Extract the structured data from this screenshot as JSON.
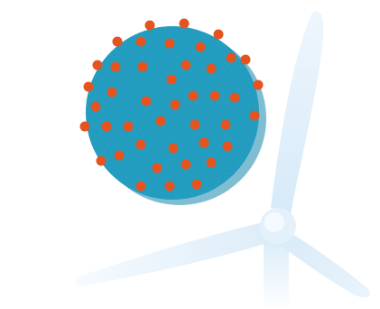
{
  "illustration": {
    "colors": {
      "background": "#ffffff",
      "sphere": "#1a92b8",
      "sphere_light": "#2aa3c8",
      "sphere_speckle": "#0e7fa6",
      "dots": "#e5531f",
      "turbine_light": "#eaf4fc",
      "turbine_mid": "#d6eaf8",
      "turbine_shadow": "#c3dff2"
    },
    "icons": [
      "sphere-illustration",
      "wind-turbine-illustration"
    ]
  }
}
